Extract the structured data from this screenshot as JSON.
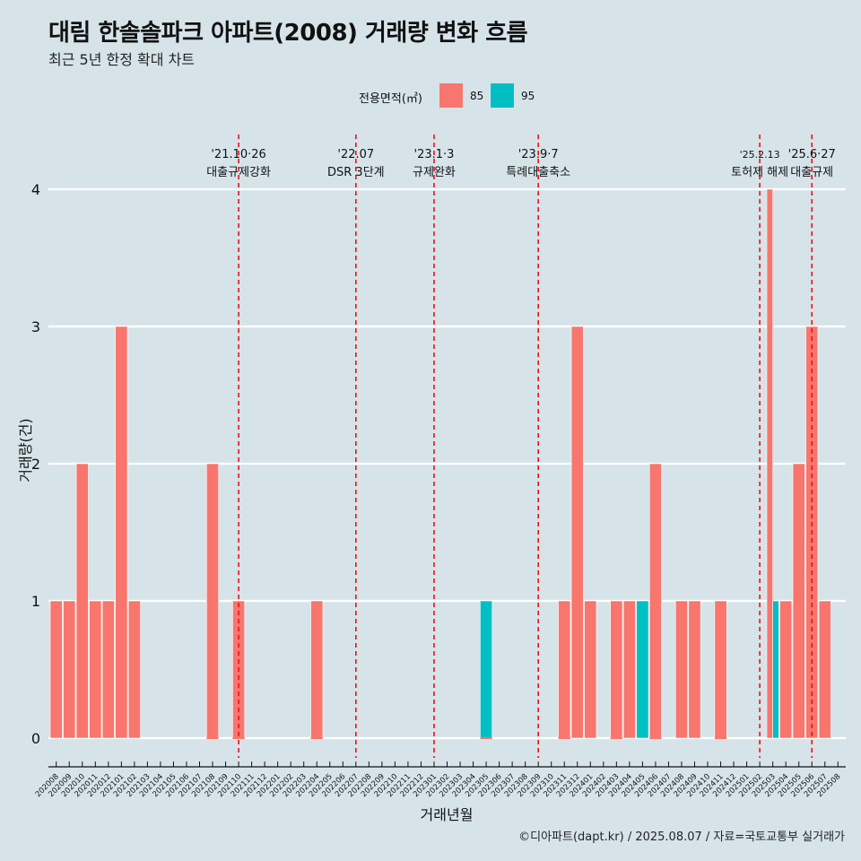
{
  "title": "대림 한솔솔파크 아파트(2008) 거래량 변화 흐름",
  "subtitle": "최근 5년 한정 확대 차트",
  "caption": "©디아파트(dapt.kr) / 2025.08.07 / 자료=국토교통부 실거래가",
  "legend": {
    "title": "전용면적(㎡)",
    "items": [
      {
        "label": "85",
        "color": "#f8766d"
      },
      {
        "label": "95",
        "color": "#00bfc4"
      }
    ]
  },
  "chart_data": {
    "type": "bar",
    "xlabel": "거래년월",
    "ylabel": "거래량(건)",
    "ylim": [
      0,
      4
    ],
    "yticks": [
      0,
      1,
      2,
      3,
      4
    ],
    "grid": true,
    "legend_position": "top",
    "categories": [
      "202008",
      "202009",
      "202010",
      "202011",
      "202012",
      "202101",
      "202102",
      "202103",
      "202104",
      "202105",
      "202106",
      "202107",
      "202108",
      "202109",
      "202110",
      "202111",
      "202112",
      "202201",
      "202202",
      "202203",
      "202204",
      "202205",
      "202206",
      "202207",
      "202208",
      "202209",
      "202210",
      "202211",
      "202212",
      "202301",
      "202302",
      "202303",
      "202304",
      "202305",
      "202306",
      "202307",
      "202308",
      "202309",
      "202310",
      "202311",
      "202312",
      "202401",
      "202402",
      "202403",
      "202404",
      "202405",
      "202406",
      "202407",
      "202408",
      "202409",
      "202410",
      "202411",
      "202412",
      "202501",
      "202502",
      "202503",
      "202504",
      "202505",
      "202506",
      "202507",
      "202508"
    ],
    "bars": [
      {
        "x": "202008",
        "series": "85",
        "value": 1
      },
      {
        "x": "202009",
        "series": "85",
        "value": 1
      },
      {
        "x": "202010",
        "series": "85",
        "value": 2
      },
      {
        "x": "202011",
        "series": "85",
        "value": 1
      },
      {
        "x": "202012",
        "series": "85",
        "value": 1
      },
      {
        "x": "202101",
        "series": "85",
        "value": 3
      },
      {
        "x": "202102",
        "series": "85",
        "value": 1
      },
      {
        "x": "202108",
        "series": "85",
        "value": 2
      },
      {
        "x": "202110",
        "series": "85",
        "value": 1
      },
      {
        "x": "202204",
        "series": "85",
        "value": 1
      },
      {
        "x": "202305",
        "series": "95",
        "value": 1
      },
      {
        "x": "202311",
        "series": "85",
        "value": 1
      },
      {
        "x": "202312",
        "series": "85",
        "value": 3
      },
      {
        "x": "202401",
        "series": "85",
        "value": 1
      },
      {
        "x": "202403",
        "series": "85",
        "value": 1
      },
      {
        "x": "202404",
        "series": "85",
        "value": 1
      },
      {
        "x": "202405",
        "series": "95",
        "value": 1
      },
      {
        "x": "202406",
        "series": "85",
        "value": 2
      },
      {
        "x": "202408",
        "series": "85",
        "value": 1
      },
      {
        "x": "202409",
        "series": "85",
        "value": 1
      },
      {
        "x": "202411",
        "series": "85",
        "value": 1
      },
      {
        "x": "202503",
        "series": "85",
        "value": 4,
        "half": "left"
      },
      {
        "x": "202503",
        "series": "95",
        "value": 1,
        "half": "right"
      },
      {
        "x": "202504",
        "series": "85",
        "value": 1
      },
      {
        "x": "202505",
        "series": "85",
        "value": 2
      },
      {
        "x": "202506",
        "series": "85",
        "value": 3
      },
      {
        "x": "202507",
        "series": "85",
        "value": 1
      }
    ],
    "zero_markers": [
      "202108",
      "202110",
      "202204",
      "202305",
      "202311",
      "202403",
      "202406",
      "202411"
    ],
    "annotations": [
      {
        "x": "202110",
        "date": "'21.10·26",
        "label": "대출규제강화"
      },
      {
        "x": "202207",
        "date": "'22.07",
        "label": "DSR 3단계"
      },
      {
        "x": "202301",
        "date": "'23.1·3",
        "label": "규제완화"
      },
      {
        "x": "202309",
        "date": "'23.9·7",
        "label": "특례대출축소"
      },
      {
        "x": "202502",
        "date": "'25.2.13",
        "label": "토허제 해제",
        "small": true
      },
      {
        "x": "202506",
        "date": "'25.6·27",
        "label": "대출규제"
      }
    ]
  }
}
